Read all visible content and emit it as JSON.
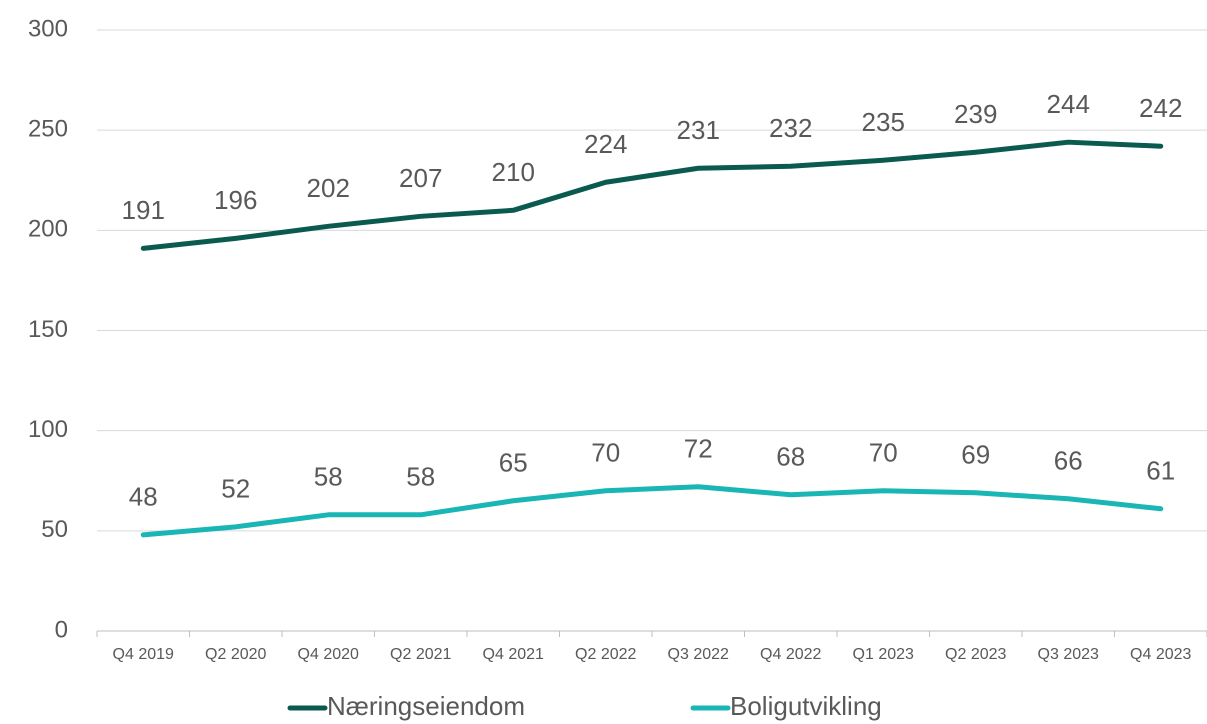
{
  "chart_data": {
    "type": "line",
    "categories": [
      "Q4 2019",
      "Q2 2020",
      "Q4 2020",
      "Q2 2021",
      "Q4 2021",
      "Q2 2022",
      "Q3 2022",
      "Q4 2022",
      "Q1 2023",
      "Q2 2023",
      "Q3 2023",
      "Q4 2023"
    ],
    "series": [
      {
        "name": "Næringseiendom",
        "color": "#0b5a50",
        "values": [
          191,
          196,
          202,
          207,
          210,
          224,
          231,
          232,
          235,
          239,
          244,
          242
        ]
      },
      {
        "name": "Boligutvikling",
        "color": "#1ab5b5",
        "values": [
          48,
          52,
          58,
          58,
          65,
          70,
          72,
          68,
          70,
          69,
          66,
          61
        ]
      }
    ],
    "ylim": [
      0,
      300
    ],
    "yticks": [
      0,
      50,
      100,
      150,
      200,
      250,
      300
    ],
    "grid": true,
    "legend": "bottom"
  }
}
